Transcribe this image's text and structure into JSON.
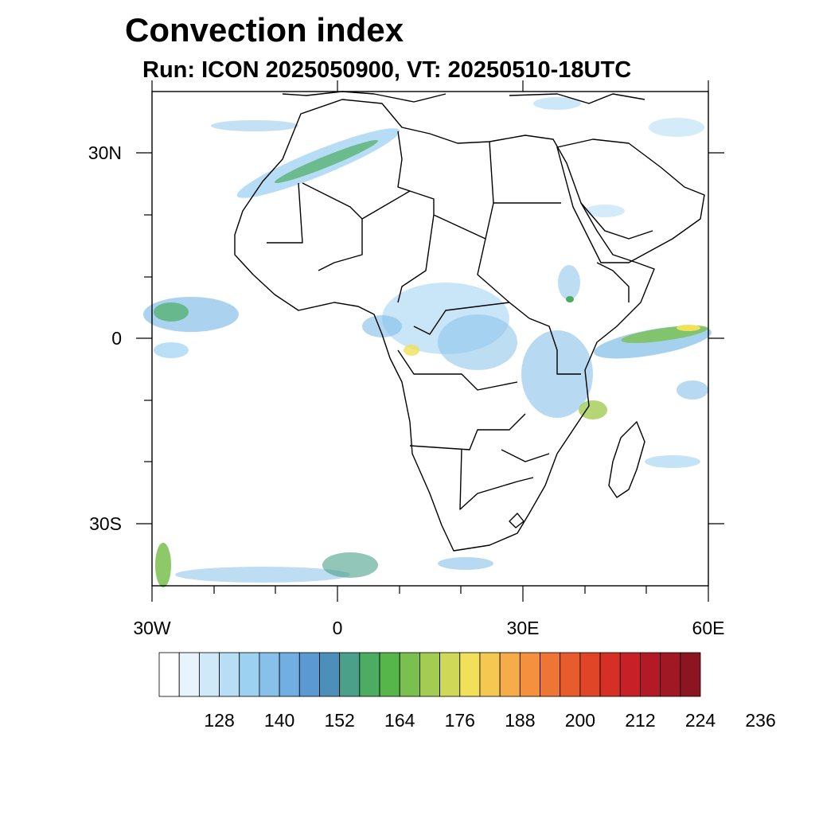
{
  "header": {
    "title": "Convection index",
    "subtitle": "Run: ICON 2025050900,  VT: 20250510-18UTC"
  },
  "map": {
    "region": "Africa",
    "lon_range": [
      -30,
      60
    ],
    "lat_range": [
      -40,
      40
    ],
    "lon_labels": [
      "30W",
      "0",
      "30E",
      "60E"
    ],
    "lat_labels": [
      "30N",
      "0",
      "30S"
    ],
    "land_color": "#ffffff",
    "ocean_color": "#ffffff",
    "boundary_color": "#000000"
  },
  "colorbar": {
    "colors": [
      "#ffffff",
      "#e8f4fb",
      "#cfe9f8",
      "#b7def5",
      "#9dd1f2",
      "#87c1ea",
      "#71aee1",
      "#5b99d3",
      "#4c8fb8",
      "#4aa088",
      "#4cad62",
      "#56b64a",
      "#79c04e",
      "#a4cc52",
      "#cfd857",
      "#f0e05a",
      "#f5c852",
      "#f6ac48",
      "#f4903e",
      "#ef7534",
      "#e85b2d",
      "#e04528",
      "#d62f25",
      "#c72026",
      "#b41a25",
      "#a01824",
      "#8b1520"
    ],
    "tick_labels": [
      "128",
      "140",
      "152",
      "164",
      "176",
      "188",
      "200",
      "212",
      "224",
      "236"
    ]
  }
}
